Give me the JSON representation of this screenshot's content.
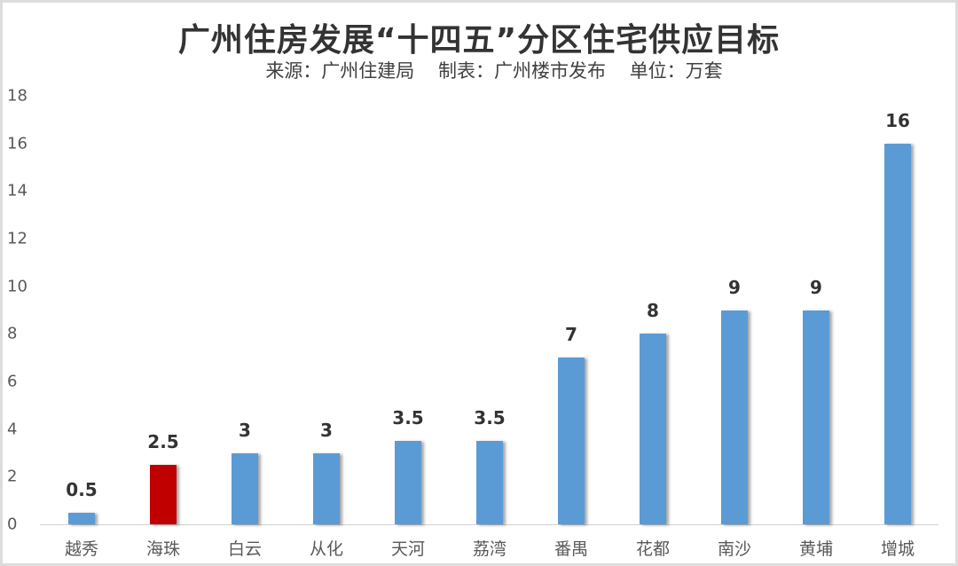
{
  "header": {
    "title": "广州住房发展“十四五”分区住宅供应目标",
    "subtitle_source": "来源：广州住建局",
    "subtitle_maker": "制表：广州楼市发布",
    "subtitle_unit": "单位：万套"
  },
  "colors": {
    "default_bar": "#5b9bd5",
    "highlight_bar": "#c00000"
  },
  "chart_data": {
    "type": "bar",
    "title": "广州住房发展“十四五”分区住宅供应目标",
    "subtitle": "来源：广州住建局 制表：广州楼市发布 单位：万套",
    "xlabel": "",
    "ylabel": "万套",
    "ylim": [
      0,
      18
    ],
    "yticks": [
      0,
      2,
      4,
      6,
      8,
      10,
      12,
      14,
      16,
      18
    ],
    "grid": false,
    "legend": null,
    "categories": [
      "越秀",
      "海珠",
      "白云",
      "从化",
      "天河",
      "荔湾",
      "番禺",
      "花都",
      "南沙",
      "黄埔",
      "增城"
    ],
    "values": [
      0.5,
      2.5,
      3,
      3,
      3.5,
      3.5,
      7,
      8,
      9,
      9,
      16
    ],
    "value_labels": [
      "0.5",
      "2.5",
      "3",
      "3",
      "3.5",
      "3.5",
      "7",
      "8",
      "9",
      "9",
      "16"
    ],
    "highlight_index": 1
  }
}
